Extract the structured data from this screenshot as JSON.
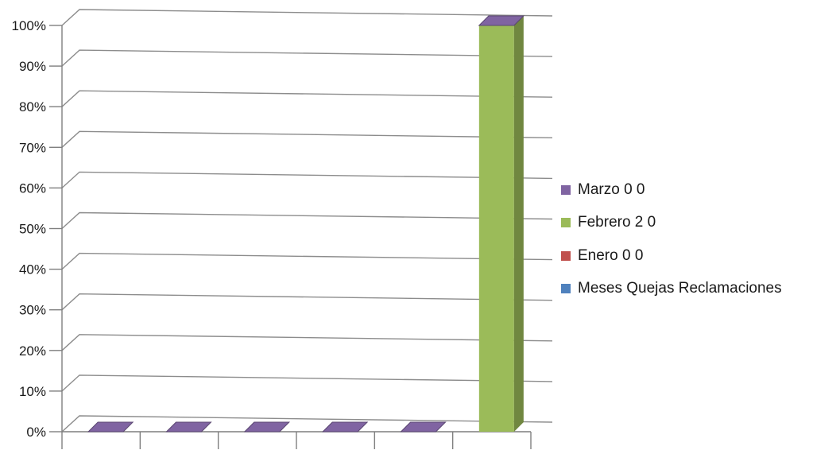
{
  "chart_data": {
    "type": "bar",
    "title": "",
    "xlabel": "",
    "ylabel": "",
    "categories": [
      "",
      "",
      "",
      "",
      "",
      ""
    ],
    "series": [
      {
        "name": "Meses Quejas  Reclamaciones",
        "color": "#4f81bd",
        "values": [
          0,
          0,
          0,
          0,
          0,
          0
        ]
      },
      {
        "name": "Enero 0 0",
        "color": "#c0504d",
        "values": [
          0,
          0,
          0,
          0,
          0,
          0
        ]
      },
      {
        "name": "Febrero 2 0",
        "color": "#9bbb59",
        "values": [
          0,
          0,
          0,
          0,
          0,
          1
        ]
      },
      {
        "name": "Marzo 0 0",
        "color": "#8064a2",
        "values": [
          0,
          0,
          0,
          0,
          0,
          0
        ]
      }
    ],
    "ylim": [
      0,
      1
    ],
    "yticks": [
      "0%",
      "10%",
      "20%",
      "30%",
      "40%",
      "50%",
      "60%",
      "70%",
      "80%",
      "90%",
      "100%"
    ],
    "stacked": true,
    "percent_scale": true,
    "three_d": true,
    "grid": true,
    "legend_position": "right"
  }
}
